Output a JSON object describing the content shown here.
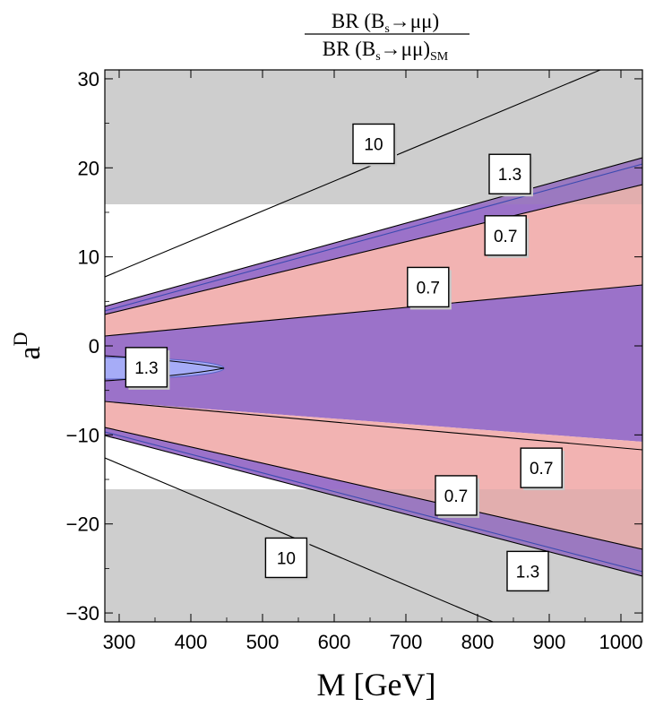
{
  "chart_data": {
    "type": "contour",
    "title_numerator": "BR (B",
    "title_sub_s": "s",
    "title_numerator_tail": "→μμ)",
    "title_denominator": "BR (B",
    "title_den_tail": "→μμ)",
    "title_sub_sm": "SM",
    "xlabel": "M [GeV]",
    "ylabel_base": "a",
    "ylabel_sup": "D",
    "xlim": [
      280,
      1030
    ],
    "ylim": [
      -31,
      31
    ],
    "xticks": [
      300,
      400,
      500,
      600,
      700,
      800,
      900,
      1000
    ],
    "yticks": [
      -30,
      -20,
      -10,
      0,
      10,
      20,
      30
    ],
    "ytick_labels": [
      "−30",
      "−20",
      "−10",
      "0",
      "10",
      "20",
      "30"
    ],
    "excluded_band_upper": [
      16.2,
      31
    ],
    "excluded_band_lower": [
      -31,
      -16.2
    ],
    "contour_levels": [
      "10",
      "1.3",
      "0.7"
    ],
    "labels": [
      {
        "text": "10",
        "x": 655,
        "y": 22.7
      },
      {
        "text": "1.3",
        "x": 845,
        "y": 19.3
      },
      {
        "text": "0.7",
        "x": 839,
        "y": 12.4
      },
      {
        "text": "0.7",
        "x": 731,
        "y": 6.6
      },
      {
        "text": "1.3",
        "x": 338,
        "y": -2.4
      },
      {
        "text": "0.7",
        "x": 889,
        "y": -13.7
      },
      {
        "text": "0.7",
        "x": 770,
        "y": -16.8
      },
      {
        "text": "10",
        "x": 533,
        "y": -23.8
      },
      {
        "text": "1.3",
        "x": 870,
        "y": -25.3
      }
    ],
    "colors": {
      "purple": "#9b72c9",
      "pink": "#f2b3b2",
      "gray": "#d9d9d9",
      "lightblue": "#a6acf7"
    }
  }
}
